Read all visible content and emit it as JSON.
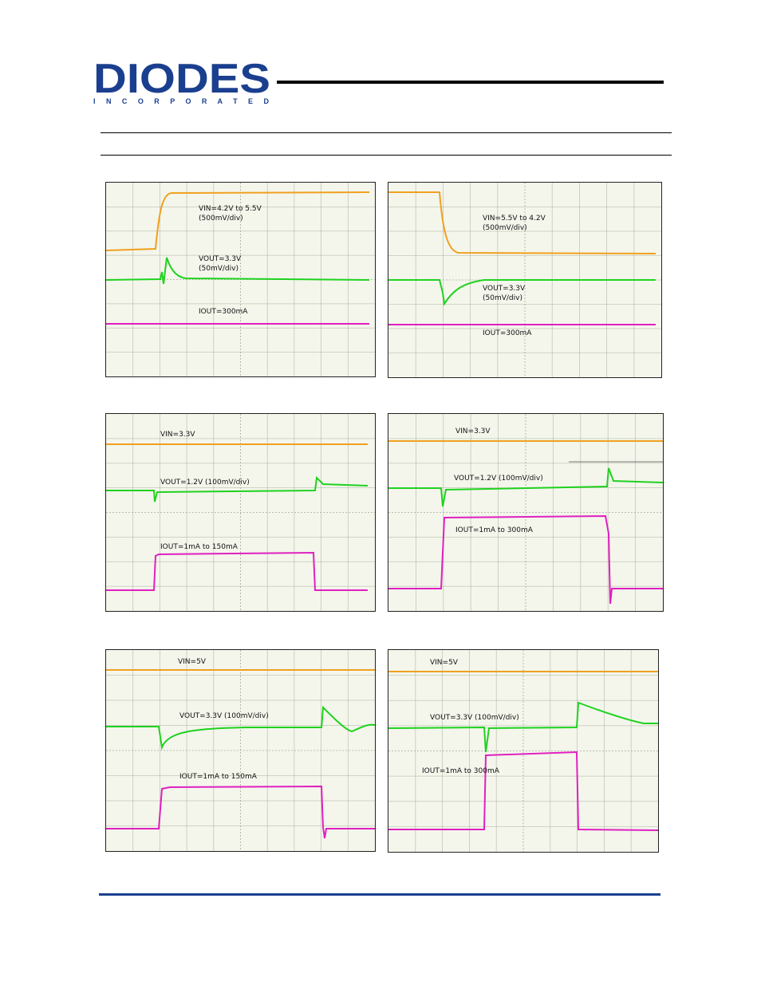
{
  "logo": {
    "brand": "DIODES",
    "sub": "I N C O R P O R A T E D",
    "color": "#1b3f8f"
  },
  "colors": {
    "vin": "#f0a020",
    "vout": "#1fd21f",
    "iout": "#e020c0",
    "grid": "#9aa28a",
    "accent": "#1b3f8f"
  },
  "scopes": [
    {
      "labels": [
        "VIN=4.2V to 5.5V",
        "(500mV/div)",
        "VOUT=3.3V",
        "(50mV/div)",
        "IOUT=300mA"
      ]
    },
    {
      "labels": [
        "VIN=5.5V to 4.2V",
        "(500mV/div)",
        "VOUT=3.3V",
        "(50mV/div)",
        "IOUT=300mA"
      ]
    },
    {
      "labels": [
        "VIN=3.3V",
        "VOUT=1.2V (100mV/div)",
        "IOUT=1mA to 150mA"
      ]
    },
    {
      "labels": [
        "VIN=3.3V",
        "VOUT=1.2V (100mV/div)",
        "IOUT=1mA to 300mA"
      ]
    },
    {
      "labels": [
        "VIN=5V",
        "VOUT=3.3V (100mV/div)",
        "IOUT=1mA to 150mA"
      ]
    },
    {
      "labels": [
        "VIN=5V",
        "VOUT=3.3V (100mV/div)",
        "IOUT=1mA to 300mA"
      ]
    }
  ]
}
